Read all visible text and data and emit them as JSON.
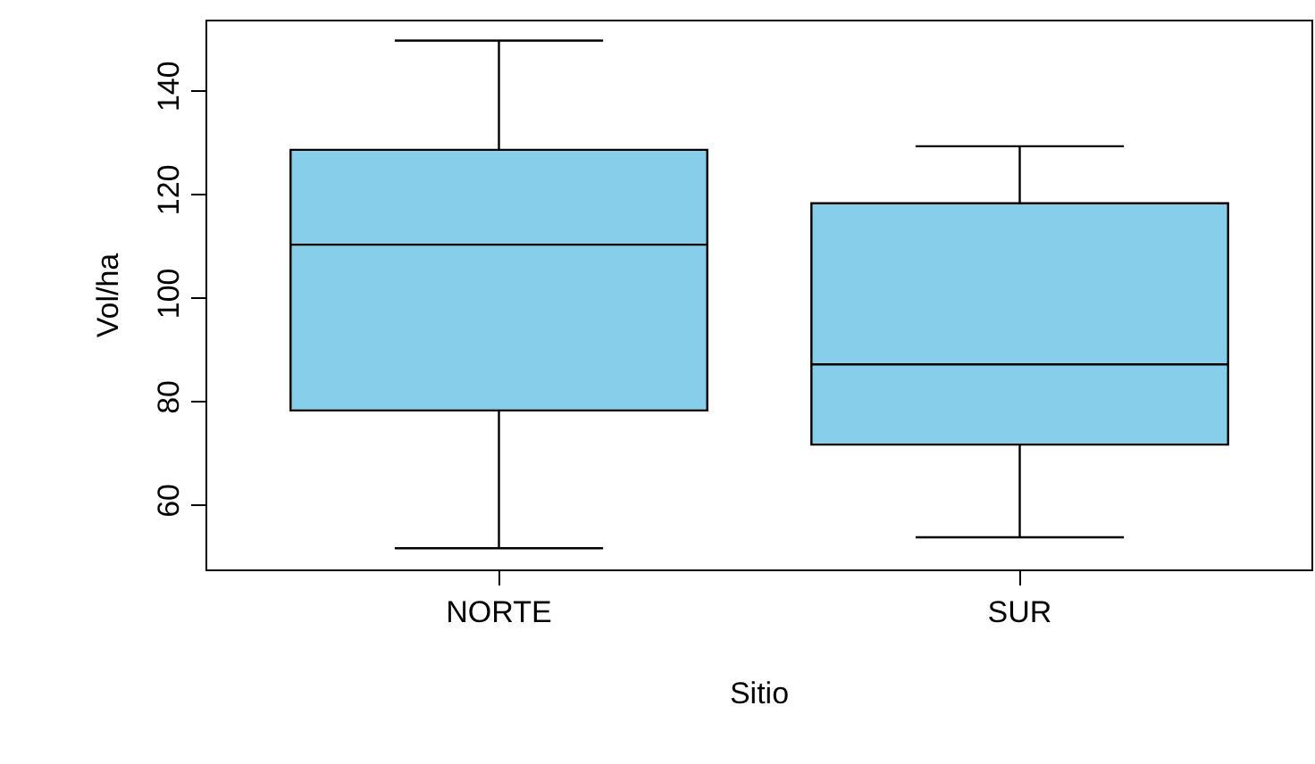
{
  "chart_data": {
    "type": "box",
    "xlabel": "Sitio",
    "ylabel": "Vol/ha",
    "categories": [
      "NORTE",
      "SUR"
    ],
    "color": "#87ceeb",
    "boxes": [
      {
        "low": 51.7,
        "q1": 78.3,
        "median": 110.3,
        "q3": 128.6,
        "high": 149.7
      },
      {
        "low": 53.8,
        "q1": 71.7,
        "median": 87.2,
        "q3": 118.3,
        "high": 129.3
      }
    ],
    "ylim": [
      47.6,
      153.4
    ],
    "yticks": [
      60,
      80,
      100,
      120,
      140
    ],
    "grid": false,
    "legend": false
  }
}
